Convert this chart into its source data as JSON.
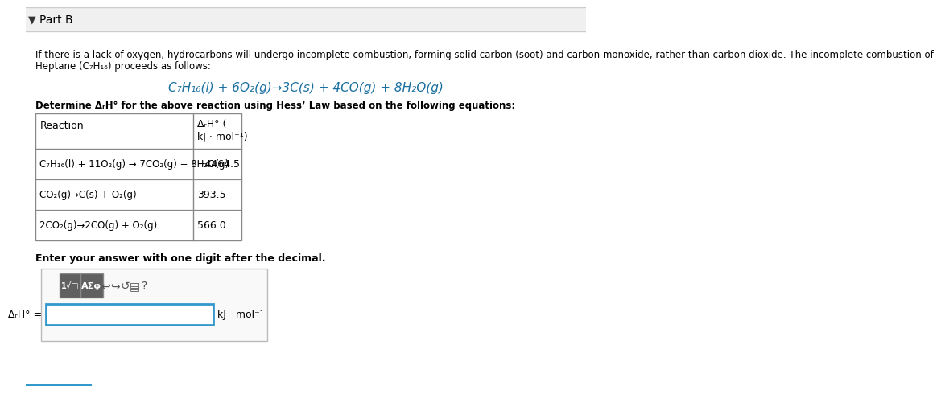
{
  "title": "Part B",
  "bg_color": "#ffffff",
  "header_bg": "#f8f8f8",
  "border_color": "#cccccc",
  "body_text": "If there is a lack of oxygen, hydrocarbons will undergo incomplete combustion, forming solid carbon (soot) and carbon monoxide, rather than carbon dioxide. The incomplete combustion of\nHeptane (C₇H₁₆) proceeds as follows:",
  "equation_center": "C₇H₁₆(l) + 6O₂(g)→3C(s) + 4CO(g) + 8H₂O(g)",
  "determine_text": "Determine ΔᵣH° for the above reaction using Hess’ Law based on the following equations:",
  "table_header_col1": "Reaction",
  "table_header_col2": "ΔᵣH° (\nkJ · mol⁻¹)",
  "table_rows": [
    [
      "C₇H₁₆(l) + 11O₂(g) → 7CO₂(g) + 8H₂O(g)",
      "−4464.5"
    ],
    [
      "CO₂(g)→C(s) + O₂(g)",
      "393.5"
    ],
    [
      "2CO₂(g)→2CO(g) + O₂(g)",
      "566.0"
    ]
  ],
  "enter_text": "Enter your answer with one digit after the decimal.",
  "answer_label": "ΔᵣH° =",
  "answer_unit": "kJ · mol⁻¹",
  "text_color": "#000000",
  "blue_text_color": "#1a6fa0",
  "link_underline_color": "#1a6fa0",
  "table_border": "#888888",
  "input_border": "#3399cc",
  "toolbar_bg": "#d0d0d0",
  "toolbar_border": "#999999"
}
